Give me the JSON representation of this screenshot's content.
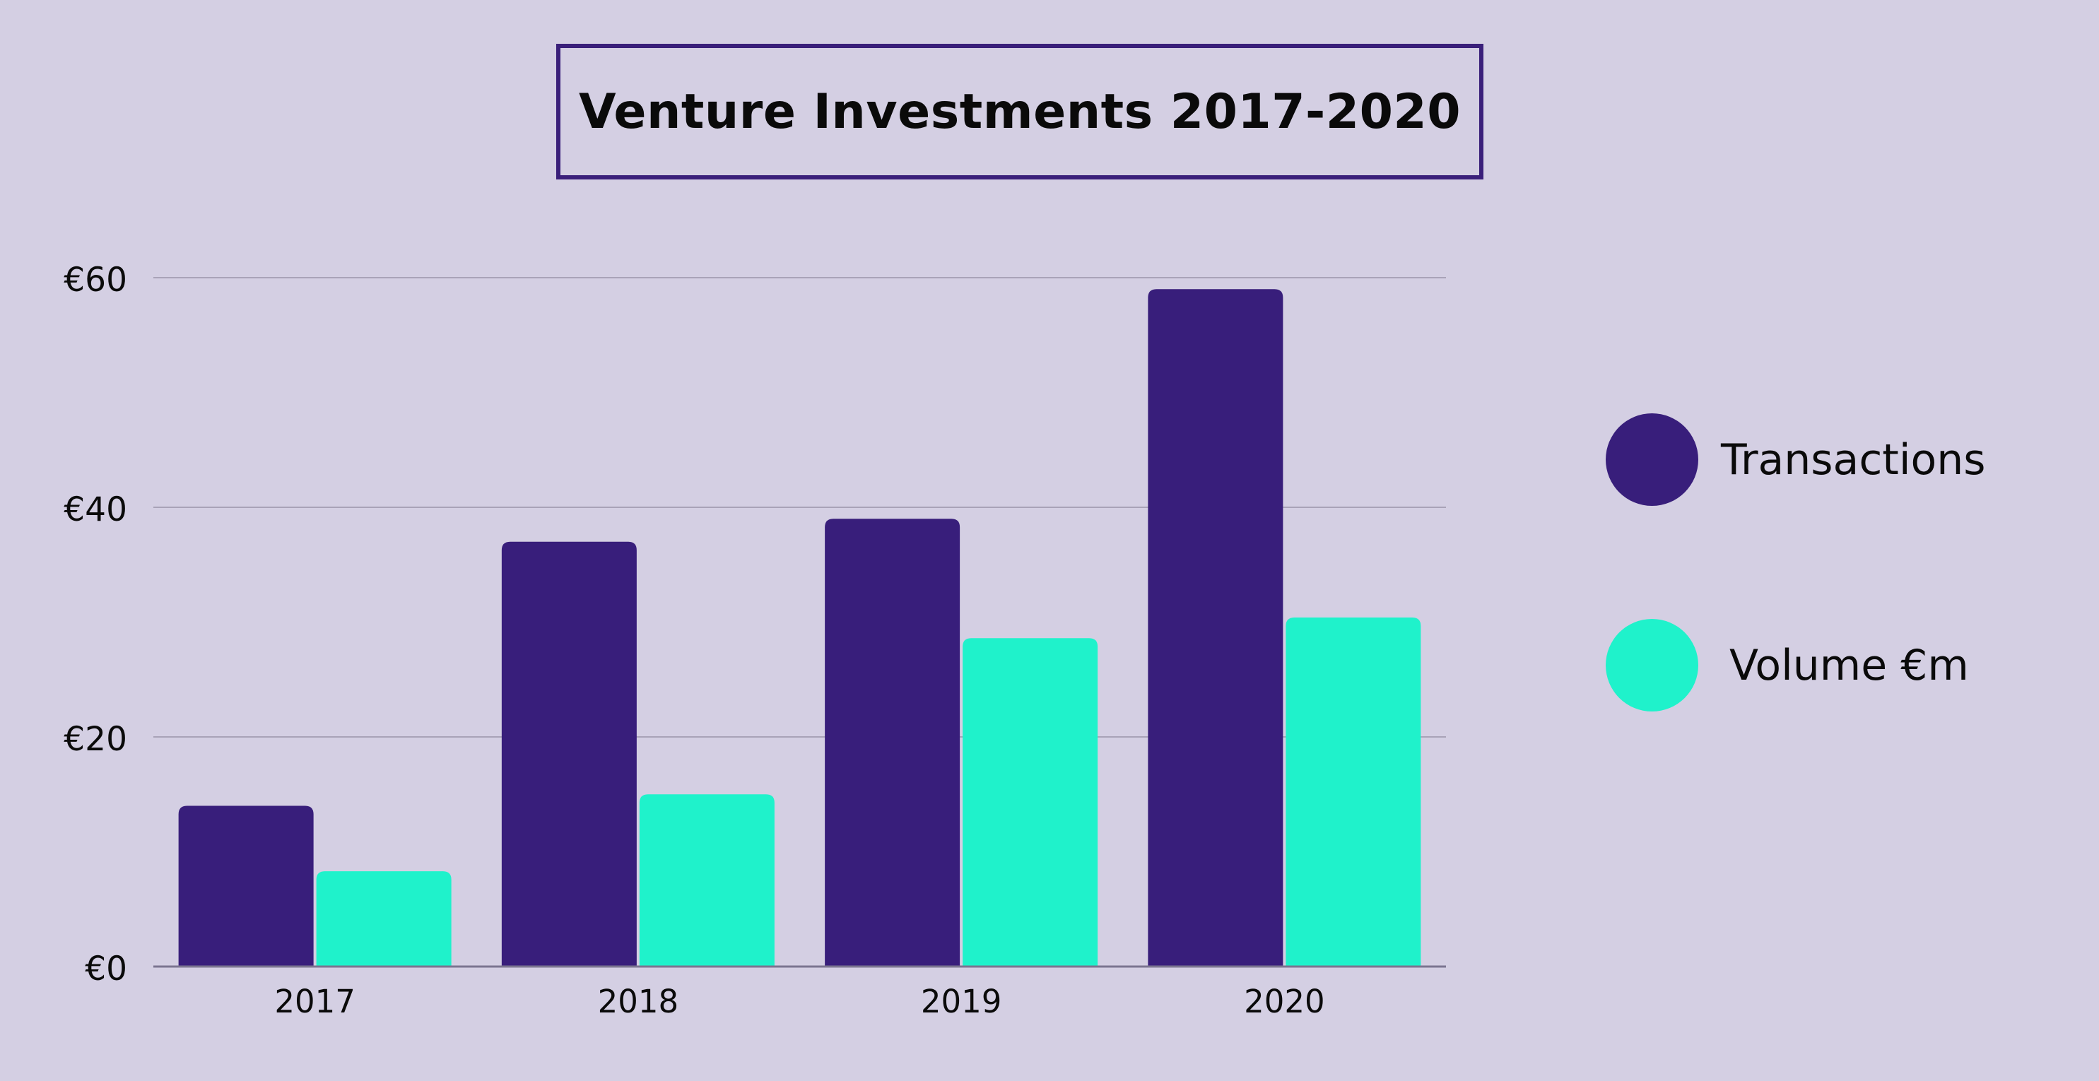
{
  "title": "Venture Investments 2017-2020",
  "legend": [
    {
      "label": "Transactions",
      "color": "#381e7b"
    },
    {
      "label": "Volume €m",
      "color": "#1ff2cb"
    }
  ],
  "chart_data": {
    "type": "bar",
    "title": "Venture Investments 2017-2020",
    "xlabel": "",
    "ylabel": "",
    "categories": [
      "2017",
      "2018",
      "2019",
      "2020"
    ],
    "series": [
      {
        "name": "Transactions",
        "color": "#381e7b",
        "values": [
          14,
          37,
          39,
          59
        ]
      },
      {
        "name": "Volume €m",
        "color": "#1ff2cb",
        "values": [
          8.3,
          15,
          28.6,
          30.4
        ]
      }
    ],
    "ylim": [
      0,
      60
    ],
    "yticks": [
      0,
      20,
      40,
      60
    ],
    "ytick_labels": [
      "€0",
      "€20",
      "€40",
      "€60"
    ],
    "grid": true,
    "legend_position": "right"
  }
}
